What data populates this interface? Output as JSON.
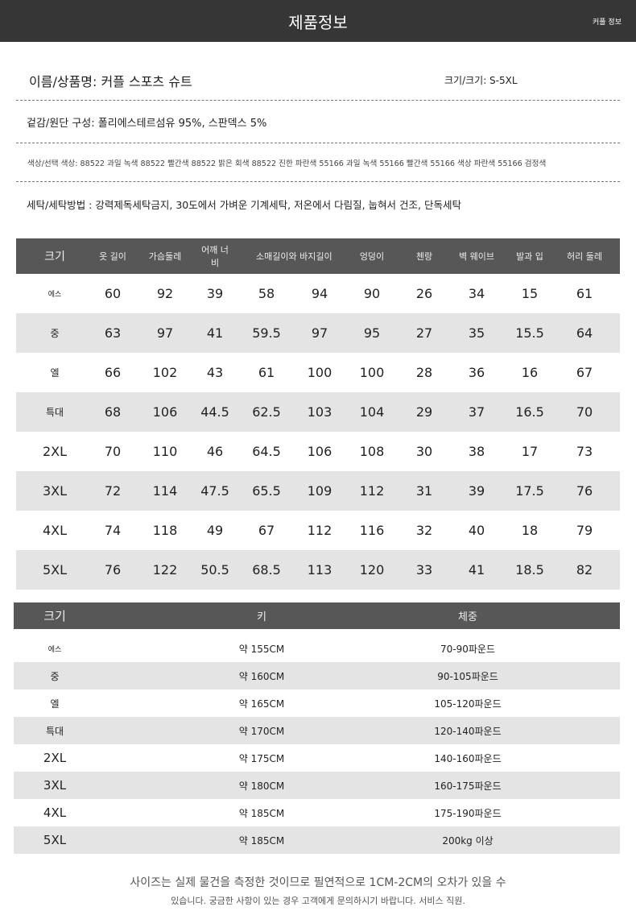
{
  "header": {
    "title": "제품정보",
    "right_label": "커플 정보"
  },
  "info": {
    "name": "이름/상품명: 커플 스포츠 슈트",
    "size": "크기/크기: S-5XL",
    "material": "겉감/원단 구성: 폴리에스테르섬유 95%, 스판덱스 5%",
    "colors": "색상/선택 색상: 88522 과일 녹색 88522 빨간색 88522 밝은 회색 88522 진한 파란색 55166 과일 녹색 55166 빨간색 55166 색상 파란색 55166 검정색",
    "washing": "세탁/세탁방법 : 강력제독세탁금지, 30도에서 가벼운 기계세탁, 저온에서 다림질, 눕혀서 건조, 단독세탁"
  },
  "size_table": {
    "headers": [
      "크기",
      "옷 길이",
      "가슴둘레",
      "어깨 너비",
      "소매길이와 바지길이",
      "",
      "엉덩이",
      "첸랑",
      "벽 웨이브",
      "발과 입",
      "허리 둘레"
    ],
    "rows": [
      [
        "에스",
        "60",
        "92",
        "39",
        "58",
        "94",
        "90",
        "26",
        "34",
        "15",
        "61"
      ],
      [
        "중",
        "63",
        "97",
        "41",
        "59.5",
        "97",
        "95",
        "27",
        "35",
        "15.5",
        "64"
      ],
      [
        "엘",
        "66",
        "102",
        "43",
        "61",
        "100",
        "100",
        "28",
        "36",
        "16",
        "67"
      ],
      [
        "특대",
        "68",
        "106",
        "44.5",
        "62.5",
        "103",
        "104",
        "29",
        "37",
        "16.5",
        "70"
      ],
      [
        "2XL",
        "70",
        "110",
        "46",
        "64.5",
        "106",
        "108",
        "30",
        "38",
        "17",
        "73"
      ],
      [
        "3XL",
        "72",
        "114",
        "47.5",
        "65.5",
        "109",
        "112",
        "31",
        "39",
        "17.5",
        "76"
      ],
      [
        "4XL",
        "74",
        "118",
        "49",
        "67",
        "112",
        "116",
        "32",
        "40",
        "18",
        "79"
      ],
      [
        "5XL",
        "76",
        "122",
        "50.5",
        "68.5",
        "113",
        "120",
        "33",
        "41",
        "18.5",
        "82"
      ]
    ]
  },
  "fit_table": {
    "headers": [
      "크기",
      "키",
      "체중"
    ],
    "rows": [
      [
        "에스",
        "약 155CM",
        "70-90파운드"
      ],
      [
        "중",
        "약 160CM",
        "90-105파운드"
      ],
      [
        "엘",
        "약 165CM",
        "105-120파운드"
      ],
      [
        "특대",
        "약 170CM",
        "120-140파운드"
      ],
      [
        "2XL",
        "약 175CM",
        "140-160파운드"
      ],
      [
        "3XL",
        "약 180CM",
        "160-175파운드"
      ],
      [
        "4XL",
        "약 185CM",
        "175-190파운드"
      ],
      [
        "5XL",
        "약 185CM",
        "200kg 이상"
      ]
    ]
  },
  "footer": {
    "line1": "사이즈는 실제 물건을 측정한 것이므로 필연적으로 1CM-2CM의 오차가 있을 수",
    "line2": "있습니다. 궁금한 사항이 있는 경우 고객에게 문의하시기 바랍니다. 서비스 직원."
  }
}
